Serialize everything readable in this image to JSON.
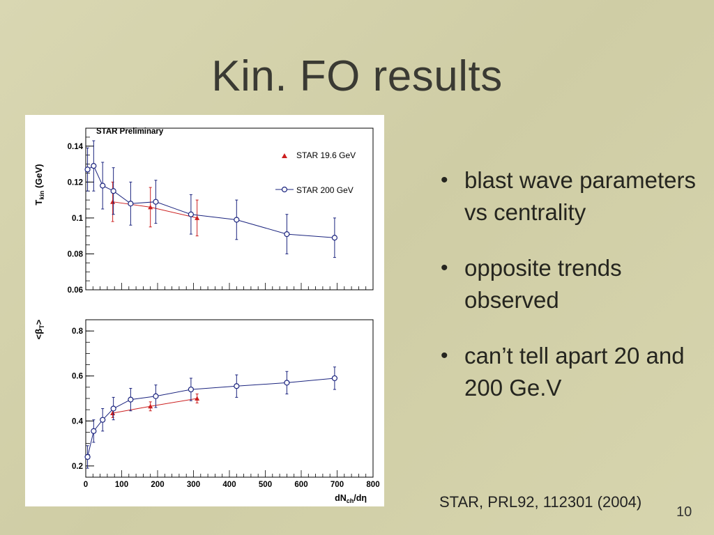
{
  "slide": {
    "title": "Kin. FO results",
    "bullets": [
      "blast wave parameters vs centrality",
      "opposite trends observed",
      "can’t tell apart 20 and 200 Ge.V"
    ],
    "bullet_symbol": "•",
    "citation": "STAR, PRL92, 112301 (2004)",
    "page_number": "10"
  },
  "chart_data": [
    {
      "type": "scatter",
      "title": "STAR Preliminary",
      "ylabel": "T_kin (GeV)",
      "ylabel_main": "T",
      "ylabel_sub": "kin",
      "ylabel_unit": " (GeV)",
      "xlim": [
        0,
        800
      ],
      "ylim": [
        0.06,
        0.15
      ],
      "ytick_labels": [
        "0.06",
        "0.08",
        "0.1",
        "0.12",
        "0.14"
      ],
      "ytick_values": [
        0.06,
        0.08,
        0.1,
        0.12,
        0.14
      ],
      "legend_position": "top-right",
      "series": [
        {
          "name": "STAR 19.6 GeV",
          "marker": "triangle",
          "color": "#cc1f1f",
          "x": [
            75,
            180,
            310
          ],
          "y": [
            0.109,
            0.106,
            0.1
          ],
          "err": [
            0.011,
            0.011,
            0.01
          ]
        },
        {
          "name": "STAR 200 GeV",
          "marker": "open-circle",
          "color": "#1a237e",
          "x": [
            5,
            22,
            47,
            77,
            125,
            195,
            293,
            420,
            560,
            693
          ],
          "y": [
            0.127,
            0.129,
            0.118,
            0.115,
            0.108,
            0.109,
            0.102,
            0.099,
            0.091,
            0.089
          ],
          "err": [
            0.012,
            0.014,
            0.013,
            0.013,
            0.012,
            0.012,
            0.011,
            0.011,
            0.011,
            0.011
          ]
        }
      ]
    },
    {
      "type": "scatter",
      "title": "",
      "ylabel": "<β_T>",
      "ylabel_main": "<β",
      "ylabel_sub": "T",
      "ylabel_close": ">",
      "xlabel": "dN_ch/dη",
      "xlabel_main": "dN",
      "xlabel_sub": "ch",
      "xlabel_end": "/dη",
      "xlim": [
        0,
        800
      ],
      "ylim": [
        0.15,
        0.85
      ],
      "xtick_labels": [
        "0",
        "100",
        "200",
        "300",
        "400",
        "500",
        "600",
        "700",
        "800"
      ],
      "xtick_values": [
        0,
        100,
        200,
        300,
        400,
        500,
        600,
        700,
        800
      ],
      "ytick_labels": [
        "0.2",
        "0.4",
        "0.6",
        "0.8"
      ],
      "ytick_values": [
        0.2,
        0.4,
        0.6,
        0.8
      ],
      "series": [
        {
          "name": "STAR 19.6 GeV",
          "marker": "triangle",
          "color": "#cc1f1f",
          "x": [
            75,
            180,
            310
          ],
          "y": [
            0.435,
            0.465,
            0.5
          ],
          "err": [
            0.02,
            0.02,
            0.02
          ]
        },
        {
          "name": "STAR 200 GeV",
          "marker": "open-circle",
          "color": "#1a237e",
          "x": [
            5,
            22,
            47,
            77,
            125,
            195,
            293,
            420,
            560,
            693
          ],
          "y": [
            0.24,
            0.355,
            0.405,
            0.455,
            0.495,
            0.51,
            0.54,
            0.555,
            0.57,
            0.59
          ],
          "err": [
            0.05,
            0.05,
            0.05,
            0.05,
            0.05,
            0.05,
            0.05,
            0.05,
            0.05,
            0.05
          ]
        }
      ]
    }
  ]
}
